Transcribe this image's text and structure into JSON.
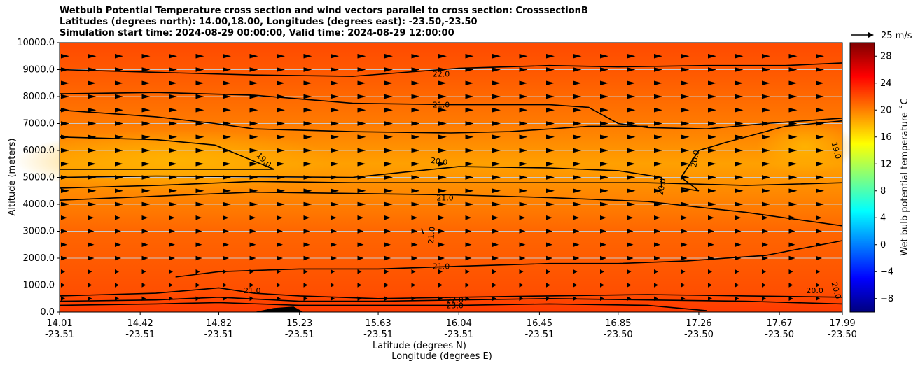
{
  "chart_data": {
    "type": "heatmap",
    "title_lines": [
      "Wetbulb Potential Temperature cross section and wind vectors parallel to cross section: CrosssectionB",
      "Latitudes (degrees north): 14.00,18.00, Longitudes (degrees east): -23.50,-23.50",
      "Simulation start time: 2024-08-29 00:00:00, Valid time: 2024-08-29 12:00:00"
    ],
    "ylabel": "Altitude (meters)",
    "xlabel_lat": "Latitude (degrees N)",
    "xlabel_lon": "Longitude (degrees E)",
    "ylim": [
      0,
      10000
    ],
    "y_ticks": [
      "0.0",
      "1000.0",
      "2000.0",
      "3000.0",
      "4000.0",
      "5000.0",
      "6000.0",
      "7000.0",
      "8000.0",
      "9000.0",
      "10000.0"
    ],
    "x_ticks_lat": [
      "14.01",
      "14.42",
      "14.82",
      "15.23",
      "15.63",
      "16.04",
      "16.45",
      "16.85",
      "17.26",
      "17.67",
      "17.99"
    ],
    "x_ticks_lon": [
      "-23.51",
      "-23.51",
      "-23.51",
      "-23.51",
      "-23.51",
      "-23.51",
      "-23.51",
      "-23.50",
      "-23.50",
      "-23.50",
      "-23.50"
    ],
    "grid": true,
    "colorbar": {
      "label": "Wet bulb potential temperature ˚C",
      "ticks": [
        "−8",
        "−4",
        "0",
        "4",
        "8",
        "12",
        "16",
        "20",
        "24",
        "28"
      ],
      "range": [
        -10,
        30
      ],
      "colors": [
        "#00007f",
        "#0000ff",
        "#007fff",
        "#00ffff",
        "#7fff7f",
        "#ffff00",
        "#ff7f00",
        "#ff0000",
        "#7f0000"
      ]
    },
    "quiver_key": {
      "label": "25 m/s"
    },
    "contour_labels": [
      {
        "text": "22.0",
        "lat": 15.95,
        "alt": 8850,
        "angle": 0
      },
      {
        "text": "21.0",
        "lat": 15.95,
        "alt": 7700,
        "angle": 0
      },
      {
        "text": "20.0",
        "lat": 15.94,
        "alt": 5600,
        "angle": 8
      },
      {
        "text": "19.0",
        "lat": 15.05,
        "alt": 5650,
        "angle": 45
      },
      {
        "text": "21.0",
        "lat": 15.97,
        "alt": 4250,
        "angle": 0
      },
      {
        "text": "21.0",
        "lat": 15.9,
        "alt": 2850,
        "angle": -85
      },
      {
        "text": "21.0",
        "lat": 15.95,
        "alt": 1700,
        "angle": 0
      },
      {
        "text": "21.0",
        "lat": 14.99,
        "alt": 800,
        "angle": 0
      },
      {
        "text": "22.0",
        "lat": 16.02,
        "alt": 450,
        "angle": 0
      },
      {
        "text": "23.0",
        "lat": 16.02,
        "alt": 250,
        "angle": 0
      },
      {
        "text": "20.0",
        "lat": 17.07,
        "alt": 4650,
        "angle": -80
      },
      {
        "text": "20.0",
        "lat": 17.24,
        "alt": 5700,
        "angle": -80
      },
      {
        "text": "19.0",
        "lat": 17.96,
        "alt": 6000,
        "angle": 75
      },
      {
        "text": "20.0",
        "lat": 17.85,
        "alt": 800,
        "angle": 0
      },
      {
        "text": "20.0",
        "lat": 17.96,
        "alt": 800,
        "angle": 75
      }
    ],
    "contour_lines": [
      {
        "value": 22,
        "points": [
          [
            14.01,
            9000
          ],
          [
            14.5,
            8900
          ],
          [
            15.0,
            8800
          ],
          [
            15.5,
            8750
          ],
          [
            16.04,
            9050
          ],
          [
            16.5,
            9150
          ],
          [
            16.85,
            9100
          ],
          [
            17.3,
            9150
          ],
          [
            17.7,
            9150
          ],
          [
            17.99,
            9250
          ]
        ]
      },
      {
        "value": 21,
        "points": [
          [
            14.01,
            8100
          ],
          [
            14.5,
            8150
          ],
          [
            15.0,
            8050
          ],
          [
            15.5,
            7750
          ],
          [
            16.0,
            7700
          ],
          [
            16.5,
            7700
          ],
          [
            16.7,
            7600
          ],
          [
            16.85,
            7000
          ],
          [
            17.0,
            6850
          ],
          [
            17.3,
            6800
          ],
          [
            17.6,
            7000
          ],
          [
            17.99,
            7200
          ]
        ]
      },
      {
        "value": 20,
        "points": [
          [
            14.01,
            7500
          ],
          [
            14.5,
            7250
          ],
          [
            14.8,
            7000
          ],
          [
            15.0,
            6800
          ],
          [
            15.5,
            6700
          ],
          [
            16.0,
            6650
          ],
          [
            16.3,
            6700
          ],
          [
            16.7,
            6900
          ],
          [
            17.0,
            6900
          ]
        ]
      },
      {
        "value": 19,
        "points": [
          [
            14.01,
            6500
          ],
          [
            14.5,
            6400
          ],
          [
            14.8,
            6200
          ],
          [
            15.1,
            5300
          ],
          [
            14.5,
            5300
          ],
          [
            14.01,
            5300
          ]
        ]
      },
      {
        "value": 20,
        "points": [
          [
            14.01,
            5000
          ],
          [
            14.5,
            5050
          ],
          [
            15.5,
            5000
          ],
          [
            16.04,
            5400
          ],
          [
            16.5,
            5350
          ],
          [
            16.85,
            5250
          ],
          [
            17.07,
            5000
          ],
          [
            17.07,
            4600
          ]
        ]
      },
      {
        "value": 20,
        "points": [
          [
            17.17,
            4600
          ],
          [
            17.26,
            4500
          ],
          [
            17.17,
            5000
          ],
          [
            17.26,
            6000
          ],
          [
            17.4,
            6300
          ],
          [
            17.7,
            6900
          ],
          [
            17.99,
            7100
          ]
        ]
      },
      {
        "value": 21,
        "points": [
          [
            14.01,
            4600
          ],
          [
            14.5,
            4700
          ],
          [
            15.0,
            4850
          ],
          [
            15.5,
            4800
          ],
          [
            16.0,
            4800
          ],
          [
            16.5,
            4800
          ],
          [
            17.0,
            4800
          ],
          [
            17.5,
            4700
          ],
          [
            17.99,
            4800
          ]
        ]
      },
      {
        "value": 21,
        "points": [
          [
            14.01,
            4150
          ],
          [
            14.5,
            4300
          ],
          [
            15.0,
            4450
          ],
          [
            15.5,
            4400
          ],
          [
            16.0,
            4350
          ],
          [
            16.5,
            4250
          ],
          [
            17.0,
            4100
          ],
          [
            17.5,
            3700
          ],
          [
            17.99,
            3200
          ]
        ]
      },
      {
        "value": 21,
        "points": [
          [
            15.85,
            3100
          ],
          [
            15.86,
            2900
          ]
        ]
      },
      {
        "value": 21,
        "points": [
          [
            14.6,
            1300
          ],
          [
            14.82,
            1500
          ],
          [
            15.23,
            1600
          ],
          [
            15.63,
            1600
          ],
          [
            16.04,
            1700
          ],
          [
            16.5,
            1800
          ],
          [
            16.85,
            1800
          ],
          [
            17.2,
            1900
          ],
          [
            17.6,
            2100
          ],
          [
            17.99,
            2650
          ]
        ]
      },
      {
        "value": 21,
        "points": [
          [
            14.01,
            600
          ],
          [
            14.5,
            700
          ],
          [
            14.82,
            900
          ],
          [
            15.0,
            700
          ],
          [
            15.23,
            600
          ],
          [
            15.63,
            500
          ],
          [
            16.04,
            550
          ],
          [
            16.5,
            600
          ],
          [
            17.0,
            650
          ],
          [
            17.5,
            600
          ],
          [
            17.99,
            550
          ]
        ]
      },
      {
        "value": 22,
        "points": [
          [
            14.01,
            400
          ],
          [
            14.5,
            450
          ],
          [
            14.82,
            550
          ],
          [
            15.23,
            400
          ],
          [
            15.63,
            400
          ],
          [
            16.04,
            450
          ],
          [
            16.5,
            500
          ],
          [
            17.0,
            450
          ],
          [
            17.5,
            400
          ],
          [
            17.99,
            300
          ]
        ]
      },
      {
        "value": 23,
        "points": [
          [
            14.01,
            250
          ],
          [
            14.5,
            300
          ],
          [
            14.82,
            350
          ],
          [
            15.23,
            250
          ],
          [
            15.63,
            250
          ],
          [
            16.04,
            250
          ],
          [
            16.5,
            300
          ],
          [
            17.0,
            250
          ],
          [
            17.3,
            50
          ]
        ]
      }
    ],
    "terrain": {
      "points": [
        [
          15.0,
          0
        ],
        [
          15.1,
          150
        ],
        [
          15.2,
          200
        ],
        [
          15.25,
          0
        ]
      ]
    }
  }
}
